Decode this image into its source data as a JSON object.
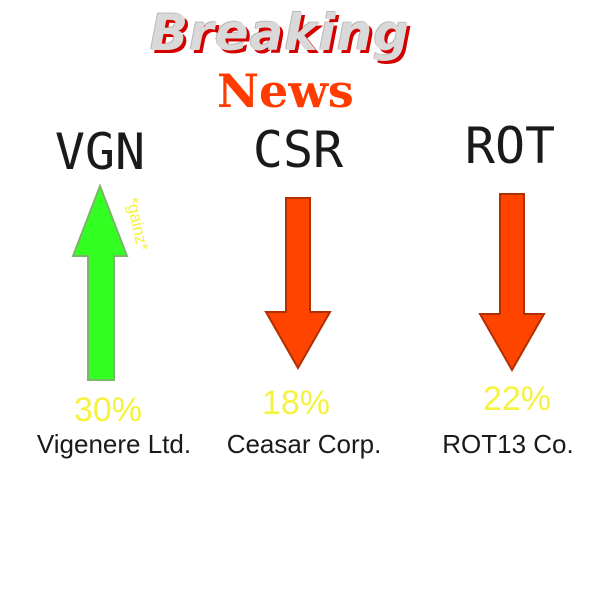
{
  "headline": {
    "line1": "Breaking",
    "line2": "News"
  },
  "colors": {
    "up": "#33ff22",
    "down": "#ff4400",
    "pct_text": "#f5f240",
    "headline_red": "#ff3b00"
  },
  "stocks": [
    {
      "ticker": "VGN",
      "change": "30%",
      "company": "Vigenere Ltd.",
      "direction": "up",
      "note": "*gainz*"
    },
    {
      "ticker": "CSR",
      "change": "18%",
      "company": "Ceasar Corp.",
      "direction": "down"
    },
    {
      "ticker": "ROT",
      "change": "22%",
      "company": "ROT13 Co.",
      "direction": "down"
    }
  ]
}
